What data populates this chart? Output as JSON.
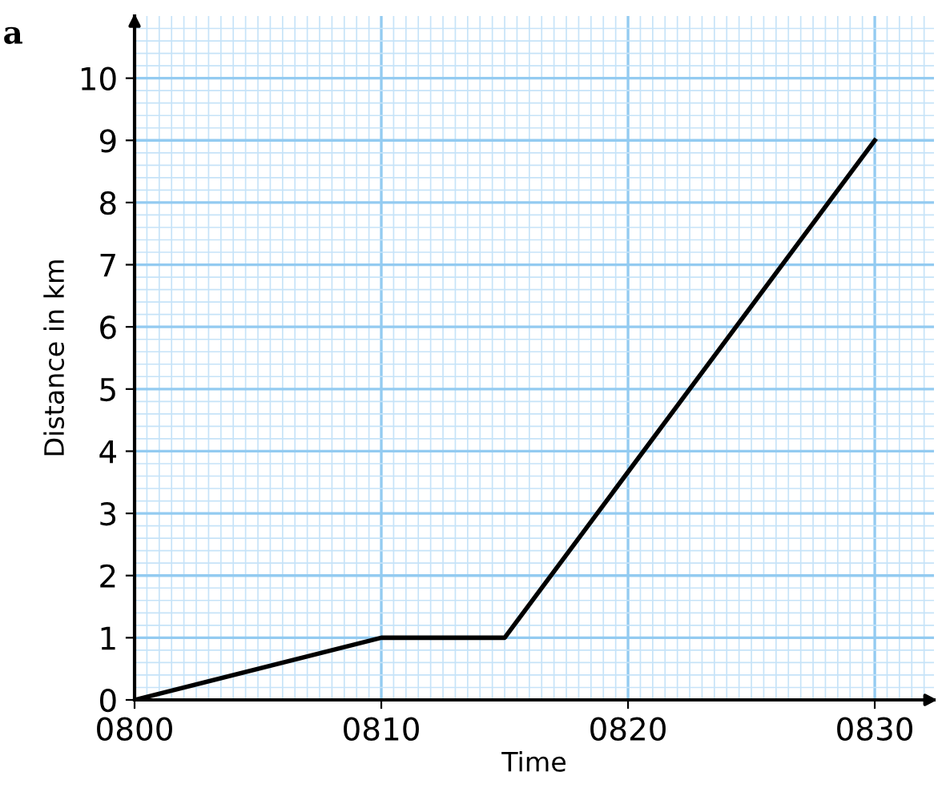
{
  "chart_data": {
    "type": "line",
    "xlabel": "Time",
    "ylabel": "Distance in km",
    "annotations": [
      "a"
    ],
    "x": [
      800,
      810,
      815,
      830
    ],
    "series": [
      {
        "color": "#000000",
        "values": [
          0,
          1,
          1,
          9
        ]
      }
    ],
    "xlim": [
      800,
      832.4
    ],
    "ylim": [
      0,
      11
    ],
    "xticks": [
      {
        "value": 800,
        "label": "0800"
      },
      {
        "value": 800.5,
        "label": null
      },
      {
        "value": 801,
        "label": null
      },
      {
        "value": 801.5,
        "label": null
      },
      {
        "value": 802,
        "label": null
      },
      {
        "value": 802.5,
        "label": null
      },
      {
        "value": 803,
        "label": null
      },
      {
        "value": 803.5,
        "label": null
      },
      {
        "value": 804,
        "label": null
      },
      {
        "value": 804.5,
        "label": null
      },
      {
        "value": 805,
        "label": null
      },
      {
        "value": 805.5,
        "label": null
      },
      {
        "value": 806,
        "label": null
      },
      {
        "value": 806.5,
        "label": null
      },
      {
        "value": 807,
        "label": null
      },
      {
        "value": 807.5,
        "label": null
      },
      {
        "value": 808,
        "label": null
      },
      {
        "value": 808.5,
        "label": null
      },
      {
        "value": 809,
        "label": null
      },
      {
        "value": 809.5,
        "label": null
      },
      {
        "value": 810,
        "label": "0810"
      },
      {
        "value": 810.5,
        "label": null
      },
      {
        "value": 811,
        "label": null
      },
      {
        "value": 811.5,
        "label": null
      },
      {
        "value": 812,
        "label": null
      },
      {
        "value": 812.5,
        "label": null
      },
      {
        "value": 813,
        "label": null
      },
      {
        "value": 813.5,
        "label": null
      },
      {
        "value": 814,
        "label": null
      },
      {
        "value": 814.5,
        "label": null
      },
      {
        "value": 815,
        "label": null
      },
      {
        "value": 815.5,
        "label": null
      },
      {
        "value": 816,
        "label": null
      },
      {
        "value": 816.5,
        "label": null
      },
      {
        "value": 817,
        "label": null
      },
      {
        "value": 817.5,
        "label": null
      },
      {
        "value": 818,
        "label": null
      },
      {
        "value": 818.5,
        "label": null
      },
      {
        "value": 819,
        "label": null
      },
      {
        "value": 819.5,
        "label": null
      },
      {
        "value": 820,
        "label": "0820"
      },
      {
        "value": 820.5,
        "label": null
      },
      {
        "value": 821,
        "label": null
      },
      {
        "value": 821.5,
        "label": null
      },
      {
        "value": 822,
        "label": null
      },
      {
        "value": 822.5,
        "label": null
      },
      {
        "value": 823,
        "label": null
      },
      {
        "value": 823.5,
        "label": null
      },
      {
        "value": 824,
        "label": null
      },
      {
        "value": 824.5,
        "label": null
      },
      {
        "value": 825,
        "label": null
      },
      {
        "value": 825.5,
        "label": null
      },
      {
        "value": 826,
        "label": null
      },
      {
        "value": 826.5,
        "label": null
      },
      {
        "value": 827,
        "label": null
      },
      {
        "value": 827.5,
        "label": null
      },
      {
        "value": 828,
        "label": null
      },
      {
        "value": 828.5,
        "label": null
      },
      {
        "value": 829,
        "label": null
      },
      {
        "value": 829.5,
        "label": null
      },
      {
        "value": 830,
        "label": "0830"
      },
      {
        "value": 830.5,
        "label": null
      },
      {
        "value": 831,
        "label": null
      },
      {
        "value": 831.5,
        "label": null
      },
      {
        "value": 832,
        "label": null
      }
    ],
    "yticks": [
      0,
      {
        "value": 0.2,
        "label": null
      },
      {
        "value": 0.4,
        "label": null
      },
      {
        "value": 0.6,
        "label": null
      },
      {
        "value": 0.8,
        "label": null
      },
      1,
      {
        "value": 1.2,
        "label": null
      },
      {
        "value": 1.4,
        "label": null
      },
      {
        "value": 1.6,
        "label": null
      },
      {
        "value": 1.8,
        "label": null
      },
      2,
      {
        "value": 2.2,
        "label": null
      },
      {
        "value": 2.4,
        "label": null
      },
      {
        "value": 2.6,
        "label": null
      },
      {
        "value": 2.8,
        "label": null
      },
      3,
      {
        "value": 3.2,
        "label": null
      },
      {
        "value": 3.4,
        "label": null
      },
      {
        "value": 3.6,
        "label": null
      },
      {
        "value": 3.8,
        "label": null
      },
      4,
      {
        "value": 4.2,
        "label": null
      },
      {
        "value": 4.4,
        "label": null
      },
      {
        "value": 4.6,
        "label": null
      },
      {
        "value": 4.8,
        "label": null
      },
      5,
      {
        "value": 5.2,
        "label": null
      },
      {
        "value": 5.4,
        "label": null
      },
      {
        "value": 5.6,
        "label": null
      },
      {
        "value": 5.8,
        "label": null
      },
      6,
      {
        "value": 6.2,
        "label": null
      },
      {
        "value": 6.4,
        "label": null
      },
      {
        "value": 6.6,
        "label": null
      },
      {
        "value": 6.8,
        "label": null
      },
      7,
      {
        "value": 7.2,
        "label": null
      },
      {
        "value": 7.4,
        "label": null
      },
      {
        "value": 7.6,
        "label": null
      },
      {
        "value": 7.8,
        "label": null
      },
      8,
      {
        "value": 8.2,
        "label": null
      },
      {
        "value": 8.4,
        "label": null
      },
      {
        "value": 8.6,
        "label": null
      },
      {
        "value": 8.8,
        "label": null
      },
      9,
      {
        "value": 9.2,
        "label": null
      },
      {
        "value": 9.4,
        "label": null
      },
      {
        "value": 9.6,
        "label": null
      },
      {
        "value": 9.8,
        "label": null
      },
      10,
      {
        "value": 10.2,
        "label": null
      },
      {
        "value": 10.4,
        "label": null
      },
      {
        "value": 10.6,
        "label": null
      },
      {
        "value": 10.8,
        "label": null
      }
    ],
    "grid": true
  }
}
